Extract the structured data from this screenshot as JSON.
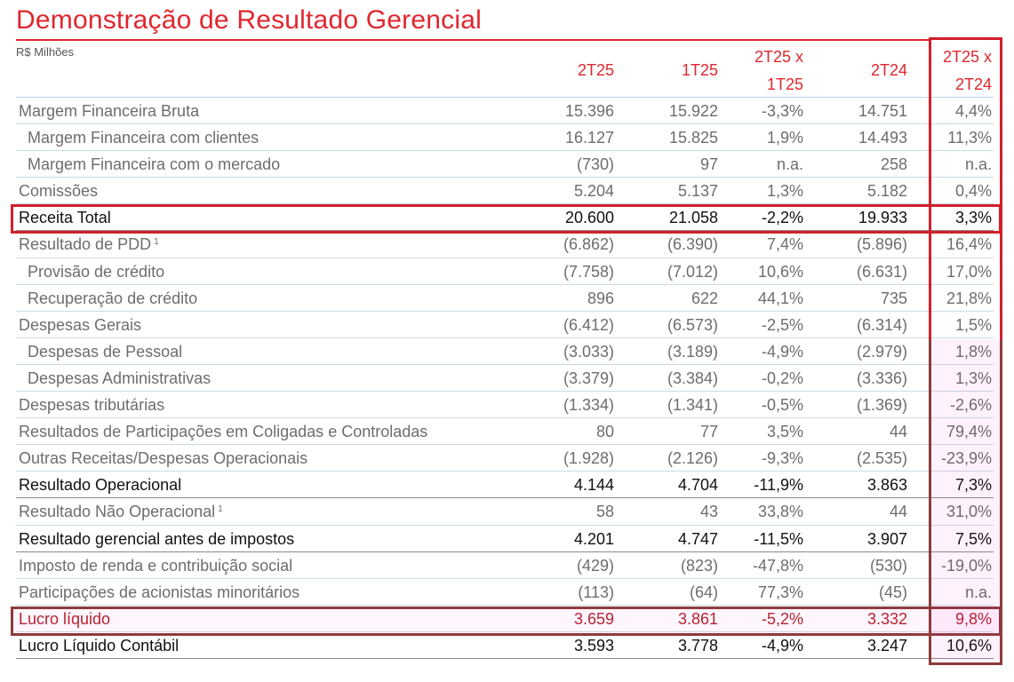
{
  "title": "Demonstração de Resultado Gerencial",
  "unit": "R$ Milhões",
  "columns": [
    {
      "line1": "2T25",
      "line2": ""
    },
    {
      "line1": "1T25",
      "line2": ""
    },
    {
      "line1": "2T25 x",
      "line2": "1T25"
    },
    {
      "line1": "2T24",
      "line2": ""
    },
    {
      "line1": "2T25 x",
      "line2": "2T24"
    }
  ],
  "rows": [
    {
      "label": "Margem Financeira Bruta",
      "sup": "",
      "indent": false,
      "style": "normal",
      "values": [
        "15.396",
        "15.922",
        "-3,3%",
        "14.751",
        "4,4%"
      ]
    },
    {
      "label": "Margem Financeira com clientes",
      "sup": "",
      "indent": true,
      "style": "normal",
      "values": [
        "16.127",
        "15.825",
        "1,9%",
        "14.493",
        "11,3%"
      ]
    },
    {
      "label": "Margem Financeira com o mercado",
      "sup": "",
      "indent": true,
      "style": "normal",
      "values": [
        "(730)",
        "97",
        "n.a.",
        "258",
        "n.a."
      ]
    },
    {
      "label": "Comissões",
      "sup": "",
      "indent": false,
      "style": "normal",
      "values": [
        "5.204",
        "5.137",
        "1,3%",
        "5.182",
        "0,4%"
      ]
    },
    {
      "label": "Receita Total",
      "sup": "",
      "indent": false,
      "style": "bold",
      "values": [
        "20.600",
        "21.058",
        "-2,2%",
        "19.933",
        "3,3%"
      ]
    },
    {
      "label": "Resultado de PDD",
      "sup": "1",
      "indent": false,
      "style": "normal",
      "values": [
        "(6.862)",
        "(6.390)",
        "7,4%",
        "(5.896)",
        "16,4%"
      ]
    },
    {
      "label": "Provisão de crédito",
      "sup": "",
      "indent": true,
      "style": "normal",
      "values": [
        "(7.758)",
        "(7.012)",
        "10,6%",
        "(6.631)",
        "17,0%"
      ]
    },
    {
      "label": "Recuperação de crédito",
      "sup": "",
      "indent": true,
      "style": "normal",
      "values": [
        "896",
        "622",
        "44,1%",
        "735",
        "21,8%"
      ]
    },
    {
      "label": "Despesas Gerais",
      "sup": "",
      "indent": false,
      "style": "normal",
      "values": [
        "(6.412)",
        "(6.573)",
        "-2,5%",
        "(6.314)",
        "1,5%"
      ]
    },
    {
      "label": "Despesas de Pessoal",
      "sup": "",
      "indent": true,
      "style": "normal",
      "values": [
        "(3.033)",
        "(3.189)",
        "-4,9%",
        "(2.979)",
        "1,8%"
      ]
    },
    {
      "label": "Despesas Administrativas",
      "sup": "",
      "indent": true,
      "style": "normal",
      "values": [
        "(3.379)",
        "(3.384)",
        "-0,2%",
        "(3.336)",
        "1,3%"
      ]
    },
    {
      "label": "Despesas tributárias",
      "sup": "",
      "indent": false,
      "style": "normal",
      "values": [
        "(1.334)",
        "(1.341)",
        "-0,5%",
        "(1.369)",
        "-2,6%"
      ]
    },
    {
      "label": "Resultados de Participações em Coligadas e Controladas",
      "sup": "",
      "indent": false,
      "style": "normal",
      "values": [
        "80",
        "77",
        "3,5%",
        "44",
        "79,4%"
      ]
    },
    {
      "label": "Outras Receitas/Despesas Operacionais",
      "sup": "",
      "indent": false,
      "style": "normal",
      "values": [
        "(1.928)",
        "(2.126)",
        "-9,3%",
        "(2.535)",
        "-23,9%"
      ]
    },
    {
      "label": "Resultado Operacional",
      "sup": "",
      "indent": false,
      "style": "bold",
      "values": [
        "4.144",
        "4.704",
        "-11,9%",
        "3.863",
        "7,3%"
      ]
    },
    {
      "label": "Resultado Não Operacional",
      "sup": "1",
      "indent": false,
      "style": "normal",
      "values": [
        "58",
        "43",
        "33,8%",
        "44",
        "31,0%"
      ]
    },
    {
      "label": "Resultado gerencial antes de impostos",
      "sup": "",
      "indent": false,
      "style": "bold",
      "values": [
        "4.201",
        "4.747",
        "-11,5%",
        "3.907",
        "7,5%"
      ]
    },
    {
      "label": "Imposto de renda e contribuição social",
      "sup": "",
      "indent": false,
      "style": "normal",
      "values": [
        "(429)",
        "(823)",
        "-47,8%",
        "(530)",
        "-19,0%"
      ]
    },
    {
      "label": "Participações de acionistas minoritários",
      "sup": "",
      "indent": false,
      "style": "normal",
      "values": [
        "(113)",
        "(64)",
        "77,3%",
        "(45)",
        "n.a."
      ]
    },
    {
      "label": "Lucro líquido",
      "sup": "",
      "indent": false,
      "style": "red",
      "values": [
        "3.659",
        "3.861",
        "-5,2%",
        "3.332",
        "9,8%"
      ]
    },
    {
      "label": "Lucro Líquido Contábil",
      "sup": "",
      "indent": false,
      "style": "bold",
      "values": [
        "3.593",
        "3.778",
        "-4,9%",
        "3.247",
        "10,6%"
      ]
    }
  ],
  "colors": {
    "accent": "#e0262e",
    "highlight_box": "#d11f2a",
    "highlight_box_dark": "#8e3b3b"
  }
}
